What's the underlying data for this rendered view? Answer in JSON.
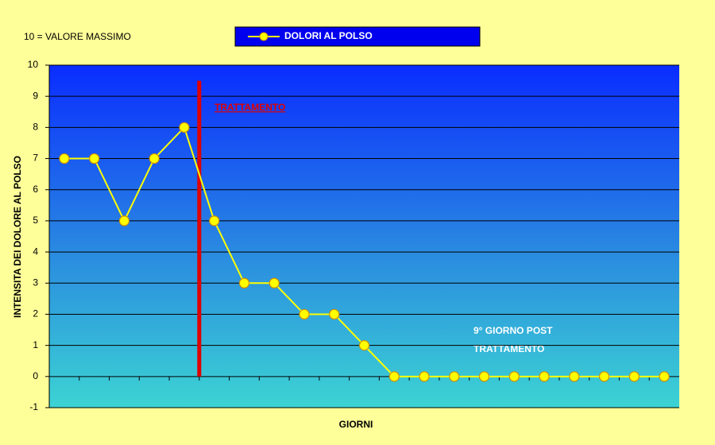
{
  "chart_data": {
    "type": "line",
    "note": "10 = VALORE MASSIMO",
    "ylabel": "INTENSITA DEI DOLORE AL POLSO",
    "xlabel": "GIORNI",
    "treatment_label": "TRATTAMENTO",
    "post_note": [
      "9° GIORNO POST",
      "TRATTAMENTO"
    ],
    "categories": [
      null,
      null,
      null,
      null,
      null,
      null,
      null,
      null,
      null,
      null,
      null,
      null,
      null,
      null,
      null,
      null,
      null,
      null,
      null,
      null,
      null
    ],
    "series": [
      {
        "name": "DOLORI AL POLSO",
        "color": "#ffff00",
        "values": [
          7,
          7,
          5,
          7,
          8,
          5,
          3,
          3,
          2,
          2,
          1,
          0,
          0,
          0,
          0,
          0,
          0,
          0,
          0,
          0,
          0
        ]
      }
    ],
    "ylim": [
      -1,
      10
    ],
    "yticks": [
      -1,
      0,
      1,
      2,
      3,
      4,
      5,
      6,
      7,
      8,
      9,
      10
    ],
    "grid": true,
    "legend": "top"
  }
}
